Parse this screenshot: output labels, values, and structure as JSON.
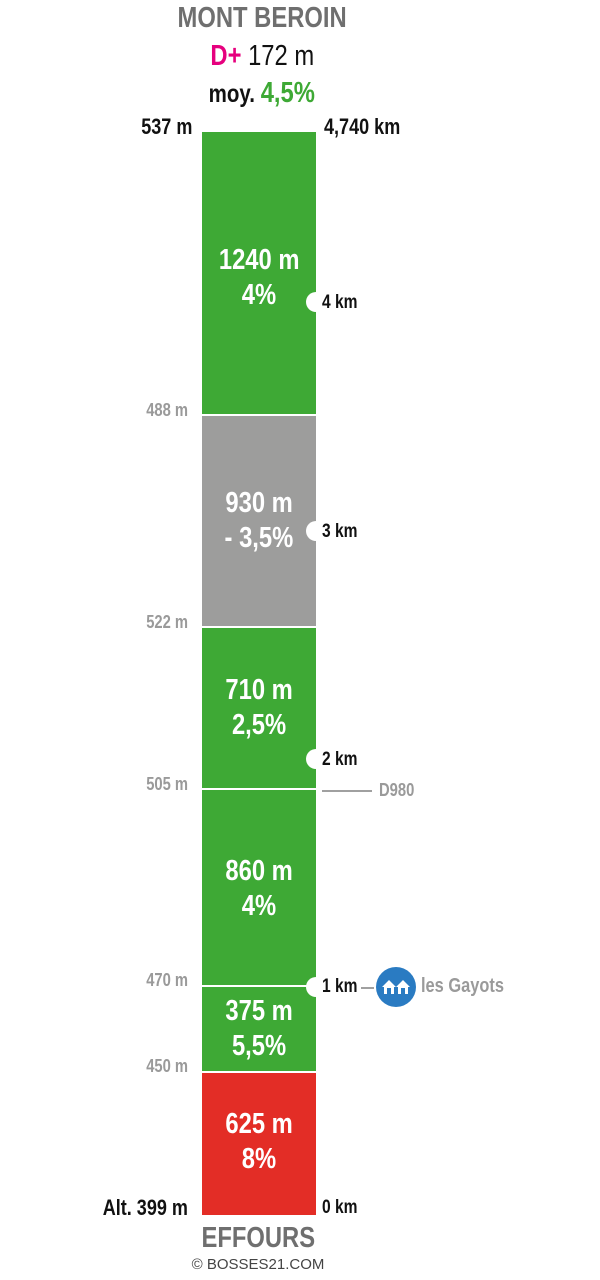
{
  "climb": {
    "name": "MONT BEROIN",
    "dplus_prefix": "D+",
    "dplus_value": "172 m",
    "avg_prefix": "moy.",
    "avg_value": "4,5%"
  },
  "summit": {
    "altitude": "537 m",
    "distance": "4,740 km"
  },
  "start": {
    "altitude": "Alt. 399 m",
    "distance": "0 km",
    "name": "EFFOURS"
  },
  "segments": [
    {
      "length": "1240 m",
      "gradient": "4%",
      "color": "#3ea935"
    },
    {
      "length": "930 m",
      "gradient": "- 3,5%",
      "color": "#9d9d9c"
    },
    {
      "length": "710 m",
      "gradient": "2,5%",
      "color": "#3ea935"
    },
    {
      "length": "860 m",
      "gradient": "4%",
      "color": "#3ea935"
    },
    {
      "length": "375 m",
      "gradient": "5,5%",
      "color": "#3ea935"
    },
    {
      "length": "625 m",
      "gradient": "8%",
      "color": "#e32d26"
    }
  ],
  "altitudes": [
    "488 m",
    "522 m",
    "505 m",
    "470 m",
    "450 m"
  ],
  "km_markers": [
    "4 km",
    "3 km",
    "2 km",
    "1 km"
  ],
  "road": "D980",
  "village": {
    "name": "les Gayots",
    "icon": "houses-icon"
  },
  "credit": "© BOSSES21.COM"
}
